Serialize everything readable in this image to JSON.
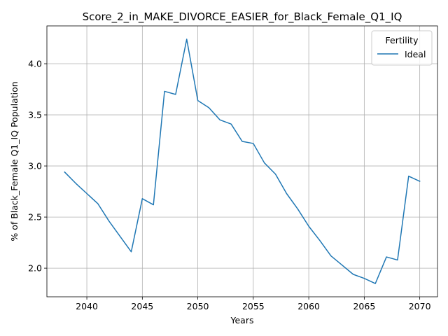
{
  "chart_data": {
    "type": "line",
    "title": "Score_2_in_MAKE_DIVORCE_EASIER_for_Black_Female_Q1_IQ",
    "xlabel": "Years",
    "ylabel": "% of Black_Female Q1_IQ Population",
    "xlim": [
      2036.4,
      2071.6
    ],
    "ylim": [
      1.72,
      4.37
    ],
    "xticks": [
      2040,
      2045,
      2050,
      2055,
      2060,
      2065,
      2070
    ],
    "yticks": [
      2.0,
      2.5,
      3.0,
      3.5,
      4.0
    ],
    "xtick_labels": [
      "2040",
      "2045",
      "2050",
      "2055",
      "2060",
      "2065",
      "2070"
    ],
    "ytick_labels": [
      "2.0",
      "2.5",
      "3.0",
      "3.5",
      "4.0"
    ],
    "grid": true,
    "legend": {
      "title": "Fertility",
      "placement": "top-right",
      "entries": [
        "Ideal"
      ]
    },
    "x": [
      2038,
      2039,
      2040,
      2041,
      2042,
      2043,
      2044,
      2045,
      2046,
      2047,
      2048,
      2049,
      2050,
      2051,
      2052,
      2053,
      2054,
      2055,
      2056,
      2057,
      2058,
      2059,
      2060,
      2061,
      2062,
      2063,
      2064,
      2065,
      2066,
      2067,
      2068,
      2069,
      2070
    ],
    "series": [
      {
        "name": "Ideal",
        "color": "#1f77b4",
        "values": [
          2.94,
          2.83,
          2.73,
          2.63,
          2.46,
          2.31,
          2.16,
          2.68,
          2.62,
          3.73,
          3.7,
          4.24,
          3.64,
          3.57,
          3.45,
          3.41,
          3.24,
          3.22,
          3.03,
          2.92,
          2.73,
          2.58,
          2.41,
          2.27,
          2.12,
          2.03,
          1.94,
          1.9,
          1.85,
          2.11,
          2.08,
          2.9,
          2.85
        ]
      }
    ]
  }
}
